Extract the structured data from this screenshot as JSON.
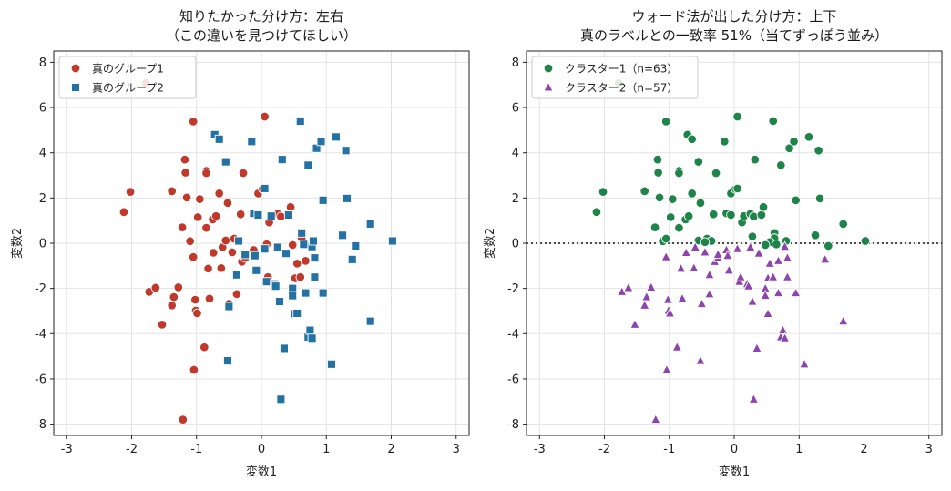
{
  "chart_data": [
    {
      "type": "scatter",
      "title": "知りたかった分け方：左右",
      "subtitle": "（この違いを見つけてほしい）",
      "xlabel": "変数1",
      "ylabel": "変数2",
      "xlim": [
        -3.2,
        3.2
      ],
      "ylim": [
        -8.5,
        8.5
      ],
      "xticks": [
        -3,
        -2,
        -1,
        0,
        1,
        2,
        3
      ],
      "yticks": [
        -8,
        -6,
        -4,
        -2,
        0,
        2,
        4,
        6,
        8
      ],
      "xtick_labels": [
        "-3",
        "-2",
        "-1",
        "0",
        "1",
        "2",
        "3"
      ],
      "ytick_labels": [
        "-8",
        "-6",
        "-4",
        "-2",
        "0",
        "2",
        "4",
        "6",
        "8"
      ],
      "grid": true,
      "legend_position": "top-left",
      "hline": null,
      "series": [
        {
          "name": "真のグループ1",
          "marker": "circle",
          "color": "#c0392b",
          "points": [
            [
              -2.12,
              1.38
            ],
            [
              -2.02,
              2.27
            ],
            [
              -1.78,
              7.08
            ],
            [
              -1.73,
              -2.15
            ],
            [
              -1.63,
              -1.97
            ],
            [
              -1.53,
              -3.6
            ],
            [
              -1.38,
              2.3
            ],
            [
              -1.38,
              -2.75
            ],
            [
              -1.35,
              -2.38
            ],
            [
              -1.28,
              -1.95
            ],
            [
              -1.22,
              0.7
            ],
            [
              -1.21,
              -7.8
            ],
            [
              -1.18,
              3.7
            ],
            [
              -1.17,
              3.12
            ],
            [
              -1.15,
              2.02
            ],
            [
              -1.1,
              0.09
            ],
            [
              -1.05,
              5.38
            ],
            [
              -1.05,
              -0.61
            ],
            [
              -1.04,
              -5.6
            ],
            [
              -1.02,
              -2.5
            ],
            [
              -1.01,
              -2.98
            ],
            [
              -0.99,
              -3.1
            ],
            [
              -0.98,
              1.15
            ],
            [
              -0.95,
              1.95
            ],
            [
              -0.88,
              -4.6
            ],
            [
              -0.85,
              3.2
            ],
            [
              -0.85,
              3.1
            ],
            [
              -0.85,
              0.68
            ],
            [
              -0.82,
              -1.12
            ],
            [
              -0.8,
              -2.45
            ],
            [
              -0.75,
              1.05
            ],
            [
              -0.74,
              -0.42
            ],
            [
              -0.7,
              1.2
            ],
            [
              -0.65,
              2.2
            ],
            [
              -0.62,
              -1.1
            ],
            [
              -0.6,
              -0.18
            ],
            [
              -0.55,
              0.12
            ],
            [
              -0.52,
              1.78
            ],
            [
              -0.5,
              -2.68
            ],
            [
              -0.45,
              -0.4
            ],
            [
              -0.42,
              0.2
            ],
            [
              -0.38,
              -2.25
            ],
            [
              -0.32,
              1.28
            ],
            [
              -0.3,
              -0.82
            ],
            [
              -0.28,
              3.1
            ],
            [
              -0.25,
              -0.65
            ],
            [
              -0.12,
              -0.3
            ],
            [
              -0.05,
              2.2
            ],
            [
              0.02,
              2.4
            ],
            [
              0.05,
              5.6
            ],
            [
              0.08,
              -0.05
            ],
            [
              0.1,
              -1.5
            ],
            [
              0.12,
              0.92
            ],
            [
              0.15,
              1.22
            ],
            [
              0.2,
              -1.8
            ],
            [
              0.25,
              1.3
            ],
            [
              0.3,
              1.18
            ],
            [
              0.45,
              1.6
            ],
            [
              0.48,
              -0.08
            ],
            [
              0.52,
              -1.55
            ],
            [
              0.55,
              -0.9
            ],
            [
              0.6,
              -1.5
            ],
            [
              0.62,
              0.22
            ],
            [
              0.68,
              -0.78
            ]
          ]
        },
        {
          "name": "真のグループ2",
          "marker": "square",
          "color": "#2471a3",
          "points": [
            [
              -0.72,
              4.8
            ],
            [
              -0.65,
              4.6
            ],
            [
              -0.55,
              3.6
            ],
            [
              -0.52,
              -5.2
            ],
            [
              -0.5,
              -2.8
            ],
            [
              -0.38,
              -1.4
            ],
            [
              -0.35,
              0.1
            ],
            [
              -0.25,
              -0.5
            ],
            [
              -0.15,
              4.5
            ],
            [
              -0.12,
              1.32
            ],
            [
              -0.1,
              -0.55
            ],
            [
              -0.08,
              -1.2
            ],
            [
              -0.05,
              1.25
            ],
            [
              0.05,
              2.42
            ],
            [
              0.05,
              -0.25
            ],
            [
              0.08,
              -1.7
            ],
            [
              0.15,
              1.2
            ],
            [
              0.2,
              -1.8
            ],
            [
              0.22,
              -1.9
            ],
            [
              0.25,
              -0.18
            ],
            [
              0.28,
              -2.58
            ],
            [
              0.3,
              -6.9
            ],
            [
              0.32,
              3.7
            ],
            [
              0.35,
              -4.65
            ],
            [
              0.38,
              -0.45
            ],
            [
              0.42,
              1.25
            ],
            [
              0.48,
              -2.0
            ],
            [
              0.48,
              -2.32
            ],
            [
              0.52,
              -3.12
            ],
            [
              0.55,
              -3.1
            ],
            [
              0.6,
              5.4
            ],
            [
              0.62,
              0.45
            ],
            [
              0.65,
              -0.05
            ],
            [
              0.68,
              -2.2
            ],
            [
              0.72,
              -4.15
            ],
            [
              0.75,
              -3.85
            ],
            [
              0.78,
              -4.2
            ],
            [
              0.78,
              -0.15
            ],
            [
              0.82,
              -1.5
            ],
            [
              0.8,
              0.1
            ],
            [
              0.82,
              -0.65
            ],
            [
              0.85,
              4.2
            ],
            [
              0.92,
              4.5
            ],
            [
              0.95,
              -2.2
            ],
            [
              0.95,
              1.9
            ],
            [
              1.08,
              -5.35
            ],
            [
              1.15,
              4.7
            ],
            [
              1.25,
              0.35
            ],
            [
              1.3,
              4.1
            ],
            [
              1.32,
              1.98
            ],
            [
              1.4,
              -0.72
            ],
            [
              1.45,
              -0.12
            ],
            [
              1.68,
              0.85
            ],
            [
              1.68,
              -3.45
            ],
            [
              2.02,
              0.1
            ],
            [
              0.72,
              3.45
            ]
          ]
        }
      ]
    },
    {
      "type": "scatter",
      "title": "ウォード法が出した分け方：上下",
      "subtitle": "真のラベルとの一致率 51%（当てずっぽう並み）",
      "xlabel": "変数1",
      "ylabel": "変数2",
      "xlim": [
        -3.2,
        3.2
      ],
      "ylim": [
        -8.5,
        8.5
      ],
      "xticks": [
        -3,
        -2,
        -1,
        0,
        1,
        2,
        3
      ],
      "yticks": [
        -8,
        -6,
        -4,
        -2,
        0,
        2,
        4,
        6,
        8
      ],
      "xtick_labels": [
        "-3",
        "-2",
        "-1",
        "0",
        "1",
        "2",
        "3"
      ],
      "ytick_labels": [
        "-8",
        "-6",
        "-4",
        "-2",
        "0",
        "2",
        "4",
        "6",
        "8"
      ],
      "grid": true,
      "legend_position": "top-left",
      "hline": 0,
      "series": [
        {
          "name": "クラスター1（n=63）",
          "marker": "circle",
          "color": "#1e8449",
          "points": [
            [
              -2.12,
              1.38
            ],
            [
              -2.02,
              2.27
            ],
            [
              -1.78,
              7.08
            ],
            [
              -1.38,
              2.3
            ],
            [
              -1.22,
              0.7
            ],
            [
              -1.18,
              3.7
            ],
            [
              -1.17,
              3.12
            ],
            [
              -1.15,
              2.02
            ],
            [
              -1.1,
              0.09
            ],
            [
              -1.05,
              5.38
            ],
            [
              -0.98,
              1.15
            ],
            [
              -0.95,
              1.95
            ],
            [
              -0.85,
              3.2
            ],
            [
              -0.85,
              3.1
            ],
            [
              -0.85,
              0.68
            ],
            [
              -0.75,
              1.05
            ],
            [
              -0.72,
              4.8
            ],
            [
              -0.7,
              1.2
            ],
            [
              -0.65,
              2.2
            ],
            [
              -0.65,
              4.6
            ],
            [
              -0.55,
              0.12
            ],
            [
              -0.55,
              3.6
            ],
            [
              -0.52,
              1.78
            ],
            [
              -0.42,
              0.2
            ],
            [
              -0.35,
              0.1
            ],
            [
              -0.32,
              1.28
            ],
            [
              -0.28,
              3.1
            ],
            [
              -0.15,
              4.5
            ],
            [
              -0.12,
              1.32
            ],
            [
              -0.05,
              2.2
            ],
            [
              -0.05,
              1.25
            ],
            [
              0.02,
              2.4
            ],
            [
              0.05,
              5.6
            ],
            [
              0.05,
              2.42
            ],
            [
              0.12,
              0.92
            ],
            [
              0.15,
              1.22
            ],
            [
              0.15,
              1.2
            ],
            [
              0.25,
              1.3
            ],
            [
              0.3,
              1.18
            ],
            [
              0.32,
              3.7
            ],
            [
              0.42,
              1.25
            ],
            [
              0.45,
              1.6
            ],
            [
              0.6,
              5.4
            ],
            [
              0.62,
              0.45
            ],
            [
              0.62,
              0.22
            ],
            [
              0.72,
              3.45
            ],
            [
              0.8,
              0.1
            ],
            [
              0.85,
              4.2
            ],
            [
              0.92,
              4.5
            ],
            [
              0.95,
              1.9
            ],
            [
              1.15,
              4.7
            ],
            [
              1.25,
              0.35
            ],
            [
              1.3,
              4.1
            ],
            [
              1.32,
              1.98
            ],
            [
              1.68,
              0.85
            ],
            [
              2.02,
              0.1
            ],
            [
              -1.05,
              0.2
            ],
            [
              -0.45,
              0.05
            ],
            [
              0.28,
              0.3
            ],
            [
              0.55,
              0.05
            ],
            [
              1.45,
              -0.12
            ],
            [
              0.65,
              -0.05
            ],
            [
              0.48,
              -0.08
            ]
          ]
        },
        {
          "name": "クラスター2（n=57）",
          "marker": "triangle",
          "color": "#8e44ad",
          "points": [
            [
              -1.73,
              -2.15
            ],
            [
              -1.63,
              -1.97
            ],
            [
              -1.53,
              -3.6
            ],
            [
              -1.38,
              -2.75
            ],
            [
              -1.35,
              -2.38
            ],
            [
              -1.28,
              -1.95
            ],
            [
              -1.21,
              -7.8
            ],
            [
              -1.05,
              -0.61
            ],
            [
              -1.04,
              -5.6
            ],
            [
              -1.02,
              -2.5
            ],
            [
              -1.01,
              -2.98
            ],
            [
              -0.99,
              -3.1
            ],
            [
              -0.88,
              -4.6
            ],
            [
              -0.82,
              -1.12
            ],
            [
              -0.8,
              -2.45
            ],
            [
              -0.74,
              -0.42
            ],
            [
              -0.62,
              -1.1
            ],
            [
              -0.6,
              -0.18
            ],
            [
              -0.52,
              -5.2
            ],
            [
              -0.5,
              -2.68
            ],
            [
              -0.45,
              -0.4
            ],
            [
              -0.38,
              -2.25
            ],
            [
              -0.38,
              -1.4
            ],
            [
              -0.3,
              -0.82
            ],
            [
              -0.25,
              -0.65
            ],
            [
              -0.25,
              -0.5
            ],
            [
              -0.12,
              -0.3
            ],
            [
              -0.1,
              -0.55
            ],
            [
              -0.08,
              -1.2
            ],
            [
              0.05,
              -0.25
            ],
            [
              0.08,
              -1.7
            ],
            [
              0.1,
              -1.5
            ],
            [
              0.2,
              -1.8
            ],
            [
              0.22,
              -1.9
            ],
            [
              0.25,
              -0.18
            ],
            [
              0.28,
              -2.58
            ],
            [
              0.3,
              -6.9
            ],
            [
              0.35,
              -4.65
            ],
            [
              0.38,
              -0.45
            ],
            [
              0.48,
              -2.0
            ],
            [
              0.48,
              -2.32
            ],
            [
              0.52,
              -1.55
            ],
            [
              0.52,
              -3.12
            ],
            [
              0.55,
              -0.9
            ],
            [
              0.6,
              -1.5
            ],
            [
              0.68,
              -0.78
            ],
            [
              0.68,
              -2.2
            ],
            [
              0.72,
              -4.15
            ],
            [
              0.75,
              -3.85
            ],
            [
              0.78,
              -4.2
            ],
            [
              0.78,
              -0.15
            ],
            [
              0.82,
              -1.5
            ],
            [
              0.82,
              -0.65
            ],
            [
              0.95,
              -2.2
            ],
            [
              1.08,
              -5.35
            ],
            [
              1.4,
              -0.72
            ],
            [
              1.68,
              -3.45
            ]
          ]
        }
      ]
    }
  ]
}
